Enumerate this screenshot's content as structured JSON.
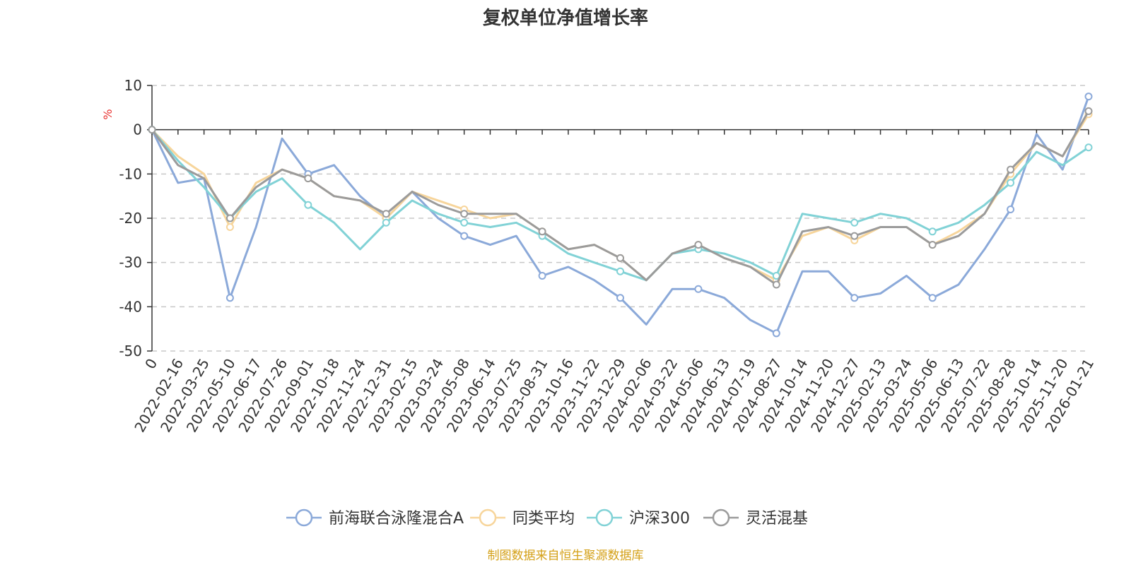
{
  "chart_data": {
    "type": "line",
    "title": "复权单位净值增长率",
    "ylabel": "%",
    "ylim": [
      -50,
      10
    ],
    "yticks": [
      10,
      0,
      -10,
      -20,
      -30,
      -40,
      -50
    ],
    "grid": true,
    "legend_position": "bottom-center",
    "source": "制图数据来自恒生聚源数据库",
    "x_labels": [
      "0",
      "2022-02-16",
      "2022-03-25",
      "2022-05-10",
      "2022-06-17",
      "2022-07-26",
      "2022-09-01",
      "2022-10-18",
      "2022-11-24",
      "2022-12-31",
      "2023-02-15",
      "2023-03-24",
      "2023-05-08",
      "2023-06-14",
      "2023-07-25",
      "2023-08-31",
      "2023-10-16",
      "2023-11-22",
      "2023-12-29",
      "2024-02-06",
      "2024-03-22",
      "2024-05-06",
      "2024-06-13",
      "2024-07-19",
      "2024-08-27",
      "2024-10-14",
      "2024-11-20",
      "2024-12-27",
      "2025-02-13",
      "2025-03-24",
      "2025-05-06",
      "2025-06-13",
      "2025-07-22",
      "2025-08-28",
      "2025-10-14",
      "2025-11-20",
      "2026-01-21"
    ],
    "series": [
      {
        "name": "前海联合泳隆混合A",
        "color": "#8ba9d9",
        "values": [
          0,
          -12,
          -11,
          -38,
          -22,
          -2,
          -10,
          -8,
          -15,
          -20,
          -14,
          -20,
          -24,
          -26,
          -24,
          -33,
          -31,
          -34,
          -38,
          -44,
          -36,
          -36,
          -38,
          -43,
          -46,
          -32,
          -32,
          -38,
          -37,
          -33,
          -38,
          -35,
          -27,
          -18,
          -1,
          -9,
          7.5
        ]
      },
      {
        "name": "同类平均",
        "color": "#f7d59b",
        "values": [
          0,
          -6,
          -10,
          -22,
          -12,
          -9,
          -11,
          -15,
          -16,
          -20,
          -14,
          -16,
          -18,
          -20,
          -19,
          -23,
          -27,
          -26,
          -29,
          -34,
          -28,
          -26,
          -29,
          -31,
          -34,
          -24,
          -22,
          -25,
          -22,
          -22,
          -26,
          -23,
          -19,
          -10,
          -3,
          -6,
          3.5
        ]
      },
      {
        "name": "沪深300",
        "color": "#81d2d6",
        "values": [
          0,
          -7,
          -13,
          -20,
          -14,
          -11,
          -17,
          -21,
          -27,
          -21,
          -16,
          -19,
          -21,
          -22,
          -21,
          -24,
          -28,
          -30,
          -32,
          -34,
          -28,
          -27,
          -28,
          -30,
          -33,
          -19,
          -20,
          -21,
          -19,
          -20,
          -23,
          -21,
          -17,
          -12,
          -5,
          -8,
          -4
        ]
      },
      {
        "name": "灵活混基",
        "color": "#9b9b9b",
        "values": [
          0,
          -8,
          -11,
          -20,
          -13,
          -9,
          -11,
          -15,
          -16,
          -19,
          -14,
          -17,
          -19,
          -19,
          -19,
          -23,
          -27,
          -26,
          -29,
          -34,
          -28,
          -26,
          -29,
          -31,
          -35,
          -23,
          -22,
          -24,
          -22,
          -22,
          -26,
          -24,
          -19,
          -9,
          -3,
          -6,
          4.2
        ]
      }
    ]
  }
}
